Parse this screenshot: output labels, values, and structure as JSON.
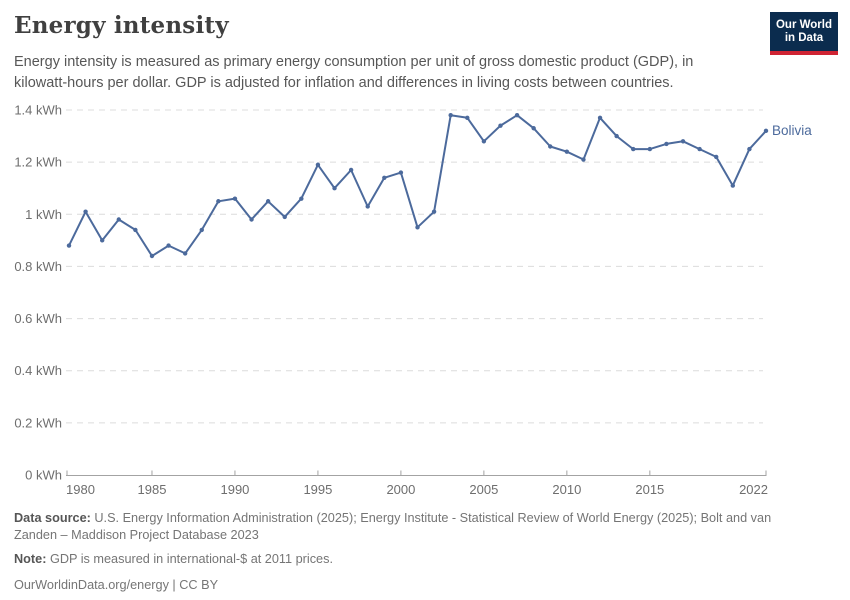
{
  "header": {
    "title": "Energy intensity",
    "subtitle": "Energy intensity is measured as primary energy consumption per unit of gross domestic product (GDP), in kilowatt-hours per dollar. GDP is adjusted for inflation and differences in living costs between countries.",
    "logo": {
      "line1": "Our World",
      "line2": "in Data",
      "bg_color": "#0b2c4e",
      "accent_color": "#cf2433"
    }
  },
  "chart_data": {
    "type": "line",
    "title": "Energy intensity",
    "unit": "kWh",
    "xlabel": "",
    "ylabel": "",
    "xlim": [
      1980,
      2022
    ],
    "ylim": [
      0,
      1.4
    ],
    "grid": "horizontal-dashed",
    "legend_position": "end-of-line-label",
    "x_ticks": [
      1980,
      1985,
      1990,
      1995,
      2000,
      2005,
      2010,
      2015,
      2022
    ],
    "y_ticks": [
      0,
      0.2,
      0.4,
      0.6,
      0.8,
      1.0,
      1.2,
      1.4
    ],
    "y_tick_labels": [
      "0 kWh",
      "0.2 kWh",
      "0.4 kWh",
      "0.6 kWh",
      "0.8 kWh",
      "1 kWh",
      "1.2 kWh",
      "1.4 kWh"
    ],
    "series": [
      {
        "name": "Bolivia",
        "color": "#4c6a9c",
        "x": [
          1980,
          1981,
          1982,
          1983,
          1984,
          1985,
          1986,
          1987,
          1988,
          1989,
          1990,
          1991,
          1992,
          1993,
          1994,
          1995,
          1996,
          1997,
          1998,
          1999,
          2000,
          2001,
          2002,
          2003,
          2004,
          2005,
          2006,
          2007,
          2008,
          2009,
          2010,
          2011,
          2012,
          2013,
          2014,
          2015,
          2016,
          2017,
          2018,
          2019,
          2020,
          2021,
          2022
        ],
        "values": [
          0.88,
          1.01,
          0.9,
          0.98,
          0.94,
          0.84,
          0.88,
          0.85,
          0.94,
          1.05,
          1.06,
          0.98,
          1.05,
          0.99,
          1.06,
          1.19,
          1.1,
          1.17,
          1.03,
          1.14,
          1.16,
          0.95,
          1.01,
          1.38,
          1.37,
          1.28,
          1.34,
          1.38,
          1.33,
          1.26,
          1.24,
          1.21,
          1.37,
          1.3,
          1.25,
          1.25,
          1.27,
          1.28,
          1.25,
          1.22,
          1.11,
          1.25,
          1.32
        ]
      }
    ]
  },
  "footer": {
    "datasource_label": "Data source:",
    "datasource_text": " U.S. Energy Information Administration (2025); Energy Institute - Statistical Review of World Energy (2025); Bolt and van Zanden – Maddison Project Database 2023",
    "note_label": "Note:",
    "note_text": " GDP is measured in international-$ at 2011 prices.",
    "url_text": "OurWorldinData.org/energy | CC BY"
  }
}
